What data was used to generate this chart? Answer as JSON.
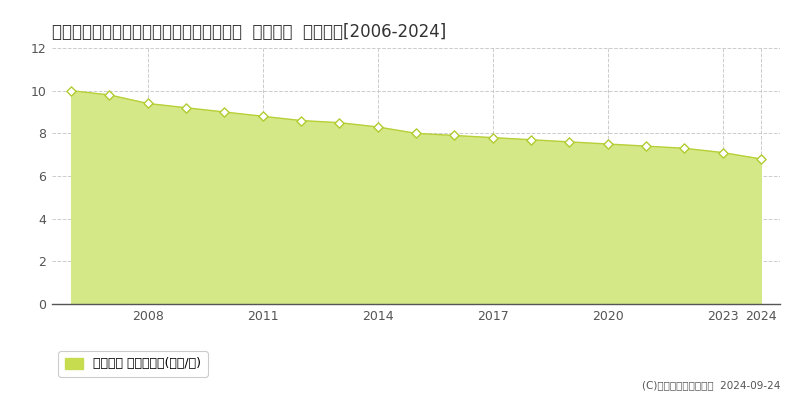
{
  "title": "島根県隠岐郡隠岐の島町有木月無４番７外  公示地価  地価推移[2006-2024]",
  "years": [
    2006,
    2007,
    2008,
    2009,
    2010,
    2011,
    2012,
    2013,
    2014,
    2015,
    2016,
    2017,
    2018,
    2019,
    2020,
    2021,
    2022,
    2023,
    2024
  ],
  "values": [
    10.0,
    9.8,
    9.4,
    9.2,
    9.0,
    8.8,
    8.6,
    8.5,
    8.3,
    8.0,
    7.9,
    7.8,
    7.7,
    7.6,
    7.5,
    7.4,
    7.3,
    7.1,
    6.8
  ],
  "line_color": "#b8d038",
  "fill_color": "#d4e887",
  "marker_face_color": "#ffffff",
  "marker_edge_color": "#b0cc30",
  "background_color": "#ffffff",
  "grid_color": "#cccccc",
  "ylim": [
    0,
    12
  ],
  "yticks": [
    0,
    2,
    4,
    6,
    8,
    10,
    12
  ],
  "xticks": [
    2008,
    2011,
    2014,
    2017,
    2020,
    2023,
    2024
  ],
  "xlim_min": 2005.5,
  "xlim_max": 2024.5,
  "legend_label": "公示地価 平均坪単価(万円/坪)",
  "legend_color": "#c8dc50",
  "copyright_text": "(C)土地価格ドットコム  2024-09-24",
  "title_fontsize": 12,
  "axis_fontsize": 9
}
